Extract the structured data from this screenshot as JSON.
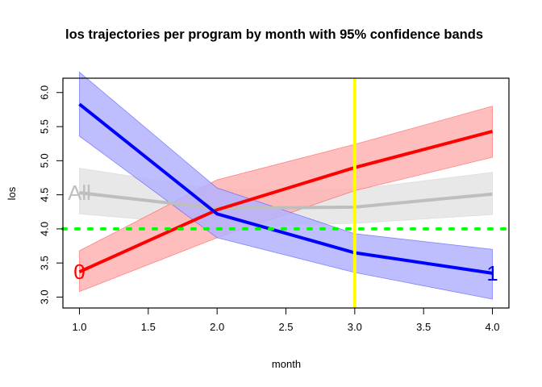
{
  "chart_data": {
    "type": "line",
    "title": "los trajectories per program by month with 95% confidence bands",
    "xlabel": "month",
    "ylabel": "los",
    "xlim": [
      0.88,
      4.12
    ],
    "ylim": [
      2.84,
      6.21
    ],
    "xticks": [
      "1.0",
      "1.5",
      "2.0",
      "2.5",
      "3.0",
      "3.5",
      "4.0"
    ],
    "yticks": [
      "3.0",
      "3.5",
      "4.0",
      "4.5",
      "5.0",
      "5.5",
      "6.0"
    ],
    "grid": false,
    "x": [
      1,
      2,
      3,
      4
    ],
    "series": [
      {
        "name": "All",
        "color": "#bebebe",
        "band_color": "#e8e8e8",
        "label_at": "start",
        "values": [
          4.53,
          4.3,
          4.32,
          4.51
        ],
        "lower": [
          4.22,
          4.05,
          4.08,
          4.21
        ],
        "upper": [
          4.89,
          4.58,
          4.58,
          4.83
        ]
      },
      {
        "name": "0",
        "color": "#ff0000",
        "band_color": "#ffb3b3",
        "label_at": "start",
        "values": [
          3.37,
          4.28,
          4.9,
          5.43
        ],
        "lower": [
          3.08,
          3.87,
          4.56,
          5.05
        ],
        "upper": [
          3.68,
          4.72,
          5.24,
          5.8
        ]
      },
      {
        "name": "1",
        "color": "#0000ff",
        "band_color": "#b3b3ff",
        "label_at": "end",
        "values": [
          5.83,
          4.22,
          3.65,
          3.35
        ],
        "lower": [
          5.36,
          3.87,
          3.36,
          2.97
        ],
        "upper": [
          6.3,
          4.6,
          3.93,
          3.7
        ]
      }
    ],
    "reference_lines": [
      {
        "orientation": "horizontal",
        "value": 4.0,
        "color": "#00ff00",
        "style": "dotted"
      },
      {
        "orientation": "vertical",
        "value": 3.0,
        "color": "#ffff00",
        "style": "solid"
      }
    ]
  }
}
